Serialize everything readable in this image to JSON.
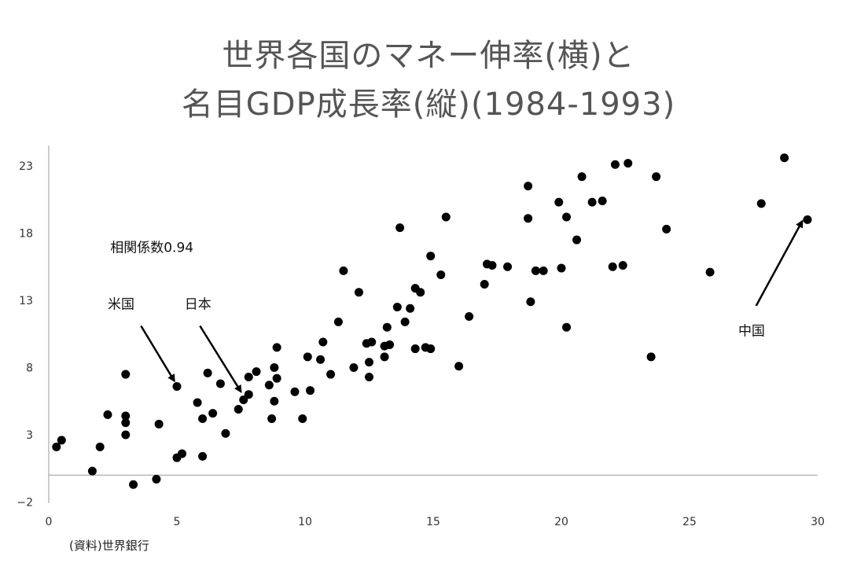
{
  "title_line1": "世界各国のマネー伸率(横)と",
  "title_line2": "名目GDP成長率(縦)(1984-1993)",
  "source_note": "(資料)世界銀行",
  "chart_data": {
    "type": "scatter",
    "title": "世界各国のマネー伸率(横)と名目GDP成長率(縦)(1984-1993)",
    "xlabel": "",
    "ylabel": "",
    "xlim": [
      0,
      30
    ],
    "ylim": [
      -2,
      25
    ],
    "x_ticks": [
      0,
      5,
      10,
      15,
      20,
      25,
      30
    ],
    "y_ticks": [
      -2,
      3,
      8,
      13,
      18,
      23
    ],
    "grid": false,
    "correlation_label": "相関係数0.94",
    "annotations": [
      {
        "text": "米国",
        "x": 2.3,
        "y": 12.4,
        "arrow_from": [
          3.6,
          11.1
        ],
        "arrow_to": [
          4.9,
          7.0
        ]
      },
      {
        "text": "日本",
        "x": 5.3,
        "y": 12.4,
        "arrow_from": [
          5.9,
          11.1
        ],
        "arrow_to": [
          7.5,
          6.2
        ]
      },
      {
        "text": "中国",
        "x": 26.9,
        "y": 10.4,
        "arrow_from": [
          27.6,
          12.6
        ],
        "arrow_to": [
          29.4,
          18.9
        ]
      }
    ],
    "points": [
      [
        0.3,
        2.1
      ],
      [
        0.5,
        2.6
      ],
      [
        1.7,
        0.3
      ],
      [
        2.0,
        2.1
      ],
      [
        2.3,
        4.5
      ],
      [
        3.0,
        7.5
      ],
      [
        3.0,
        4.4
      ],
      [
        3.0,
        3.9
      ],
      [
        3.0,
        3.0
      ],
      [
        3.3,
        -0.7
      ],
      [
        4.2,
        -0.3
      ],
      [
        4.3,
        3.8
      ],
      [
        5.0,
        1.3
      ],
      [
        5.2,
        1.6
      ],
      [
        5.0,
        6.6
      ],
      [
        5.8,
        5.4
      ],
      [
        6.0,
        4.2
      ],
      [
        6.0,
        1.4
      ],
      [
        6.2,
        7.6
      ],
      [
        6.4,
        4.6
      ],
      [
        6.7,
        6.8
      ],
      [
        6.9,
        3.1
      ],
      [
        7.4,
        4.9
      ],
      [
        7.6,
        5.6
      ],
      [
        7.8,
        6.0
      ],
      [
        7.8,
        7.3
      ],
      [
        8.1,
        7.7
      ],
      [
        8.6,
        6.7
      ],
      [
        8.7,
        4.2
      ],
      [
        8.8,
        5.5
      ],
      [
        8.8,
        8.0
      ],
      [
        8.9,
        7.2
      ],
      [
        8.9,
        9.5
      ],
      [
        9.6,
        6.2
      ],
      [
        9.9,
        4.2
      ],
      [
        10.1,
        8.8
      ],
      [
        10.2,
        6.3
      ],
      [
        10.6,
        8.6
      ],
      [
        10.7,
        9.9
      ],
      [
        11.0,
        7.5
      ],
      [
        11.3,
        11.4
      ],
      [
        11.5,
        15.2
      ],
      [
        11.9,
        8.0
      ],
      [
        12.1,
        13.6
      ],
      [
        12.4,
        9.8
      ],
      [
        12.5,
        7.3
      ],
      [
        12.5,
        8.4
      ],
      [
        12.6,
        9.9
      ],
      [
        13.1,
        9.6
      ],
      [
        13.1,
        8.8
      ],
      [
        13.2,
        11.0
      ],
      [
        13.3,
        9.7
      ],
      [
        13.6,
        12.5
      ],
      [
        13.7,
        18.4
      ],
      [
        13.9,
        11.4
      ],
      [
        14.1,
        12.4
      ],
      [
        14.3,
        9.4
      ],
      [
        14.3,
        13.9
      ],
      [
        14.5,
        13.6
      ],
      [
        14.7,
        9.5
      ],
      [
        14.9,
        9.4
      ],
      [
        14.9,
        16.3
      ],
      [
        15.3,
        14.9
      ],
      [
        15.5,
        19.2
      ],
      [
        16.0,
        8.1
      ],
      [
        16.4,
        11.8
      ],
      [
        17.0,
        14.2
      ],
      [
        17.1,
        15.7
      ],
      [
        17.3,
        15.6
      ],
      [
        17.9,
        15.5
      ],
      [
        18.7,
        21.5
      ],
      [
        18.7,
        19.1
      ],
      [
        18.8,
        12.9
      ],
      [
        19.0,
        15.2
      ],
      [
        19.3,
        15.2
      ],
      [
        19.9,
        20.3
      ],
      [
        20.0,
        15.4
      ],
      [
        20.2,
        19.2
      ],
      [
        20.2,
        11.0
      ],
      [
        20.6,
        17.5
      ],
      [
        20.8,
        22.2
      ],
      [
        21.2,
        20.3
      ],
      [
        21.6,
        20.4
      ],
      [
        22.0,
        15.5
      ],
      [
        22.1,
        23.1
      ],
      [
        22.4,
        15.6
      ],
      [
        22.6,
        23.2
      ],
      [
        23.5,
        8.8
      ],
      [
        23.7,
        22.2
      ],
      [
        24.1,
        18.3
      ],
      [
        25.8,
        15.1
      ],
      [
        27.8,
        20.2
      ],
      [
        28.7,
        23.6
      ],
      [
        29.6,
        19.0
      ]
    ]
  }
}
